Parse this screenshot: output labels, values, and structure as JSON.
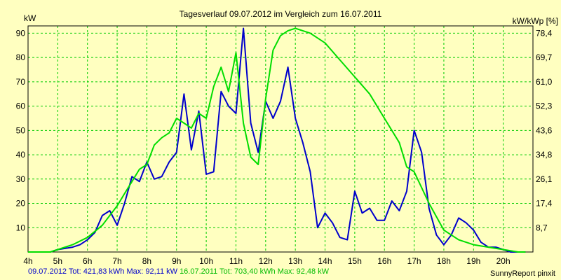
{
  "chart_data": {
    "type": "line",
    "title": "Tagesverlauf 09.07.2012 im Vergleich zum 16.07.2011",
    "ylabel_left": "kW",
    "ylabel_right": "kW/kWp [%]",
    "ylim": [
      0,
      93
    ],
    "xlim": [
      4,
      21
    ],
    "y_ticks_left": [
      "10",
      "20",
      "30",
      "40",
      "50",
      "60",
      "70",
      "80",
      "90"
    ],
    "y_ticks_right": [
      "8,7",
      "17,4",
      "26,1",
      "34,8",
      "43,6",
      "52,3",
      "61,0",
      "69,7",
      "78,4"
    ],
    "x_ticks": [
      "4h",
      "5h",
      "6h",
      "7h",
      "8h",
      "9h",
      "10h",
      "11h",
      "12h",
      "13h",
      "14h",
      "15h",
      "16h",
      "17h",
      "18h",
      "19h",
      "20h"
    ],
    "grid": true,
    "series": [
      {
        "name": "09.07.2012",
        "color": "#0000cc",
        "summary": "09.07.2012 Tot: 421,83 kWh Max: 92,11 kW",
        "x": [
          4,
          4.75,
          5,
          5.5,
          5.75,
          6,
          6.25,
          6.5,
          6.75,
          7,
          7.25,
          7.5,
          7.75,
          8,
          8.25,
          8.5,
          8.75,
          9,
          9.25,
          9.5,
          9.75,
          10,
          10.25,
          10.5,
          10.75,
          11,
          11.25,
          11.5,
          11.75,
          12,
          12.25,
          12.5,
          12.75,
          13,
          13.25,
          13.5,
          13.75,
          14,
          14.25,
          14.5,
          14.75,
          15,
          15.25,
          15.5,
          15.75,
          16,
          16.25,
          16.5,
          16.75,
          17,
          17.25,
          17.5,
          17.75,
          18,
          18.25,
          18.5,
          18.75,
          19,
          19.25,
          19.5,
          19.75,
          20,
          20.25,
          20.75
        ],
        "y": [
          0,
          0,
          1,
          2,
          3,
          5,
          8,
          15,
          17,
          11,
          20,
          31,
          29,
          37,
          30,
          31,
          37,
          41,
          65,
          42,
          58,
          32,
          33,
          66,
          60,
          57,
          92,
          53,
          41,
          62,
          55,
          62,
          76,
          55,
          45,
          33,
          10,
          16,
          12,
          6,
          5,
          25,
          16,
          18,
          13,
          13,
          21,
          17,
          25,
          50,
          41,
          18,
          7,
          3,
          7,
          14,
          12,
          9,
          4,
          2,
          2,
          1,
          0,
          0
        ]
      },
      {
        "name": "16.07.2011",
        "color": "#00dd00",
        "summary": "16.07.2011 Tot: 703,40 kWh Max: 92,48 kW",
        "x": [
          4,
          4.75,
          5,
          5.5,
          6,
          6.5,
          7,
          7.25,
          7.5,
          7.75,
          8,
          8.25,
          8.5,
          8.75,
          9,
          9.25,
          9.5,
          9.75,
          10,
          10.25,
          10.5,
          10.75,
          11,
          11.25,
          11.5,
          11.75,
          12,
          12.25,
          12.5,
          12.75,
          13,
          13.25,
          13.5,
          14,
          14.5,
          15,
          15.5,
          16,
          16.5,
          16.75,
          17,
          17.5,
          18,
          18.5,
          19,
          19.5,
          20,
          20.5,
          20.75
        ],
        "y": [
          0,
          0,
          1,
          3,
          6,
          11,
          19,
          24,
          29,
          34,
          36,
          44,
          47,
          49,
          55,
          53,
          51,
          57,
          55,
          68,
          76,
          66,
          82,
          53,
          39,
          36,
          63,
          83,
          89,
          91,
          92,
          91,
          90,
          86,
          79,
          72,
          65,
          55,
          45,
          35,
          33,
          20,
          9,
          5,
          3,
          2,
          1,
          0,
          0
        ]
      }
    ]
  },
  "footer": {
    "series1_summary": "09.07.2012 Tot: 421,83 kWh Max: 92,11 kW",
    "series2_summary": "16.07.2011 Tot: 703,40 kWh Max: 92,48 kW",
    "credit": "SunnyReport pinxit"
  }
}
